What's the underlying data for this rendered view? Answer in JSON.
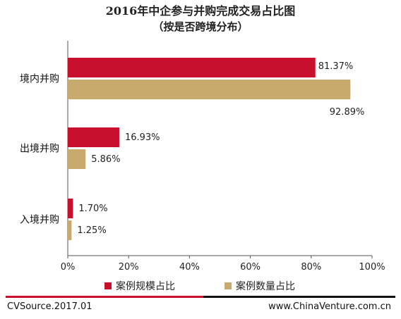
{
  "chart_data": {
    "type": "bar",
    "orientation": "horizontal",
    "title": "2016年中企参与并购完成交易占比图",
    "subtitle": "（按是否跨境分布）",
    "categories": [
      "境内并购",
      "出境并购",
      "入境并购"
    ],
    "series": [
      {
        "name": "案例规模占比",
        "color": "#c8102e",
        "values": [
          81.37,
          16.93,
          1.7
        ],
        "labels": [
          "81.37%",
          "16.93%",
          "1.70%"
        ]
      },
      {
        "name": "案例数量占比",
        "color": "#c8a96e",
        "values": [
          92.89,
          5.86,
          1.25
        ],
        "labels": [
          "92.89%",
          "5.86%",
          "1.25%"
        ]
      }
    ],
    "xlim": [
      0,
      100
    ],
    "xticks": [
      "0%",
      "20%",
      "40%",
      "60%",
      "80%",
      "100%"
    ],
    "grid": false,
    "legend_position": "bottom"
  },
  "footer": {
    "source": "CVSource.2017.01",
    "site": "www.ChinaVenture.com.cn"
  }
}
